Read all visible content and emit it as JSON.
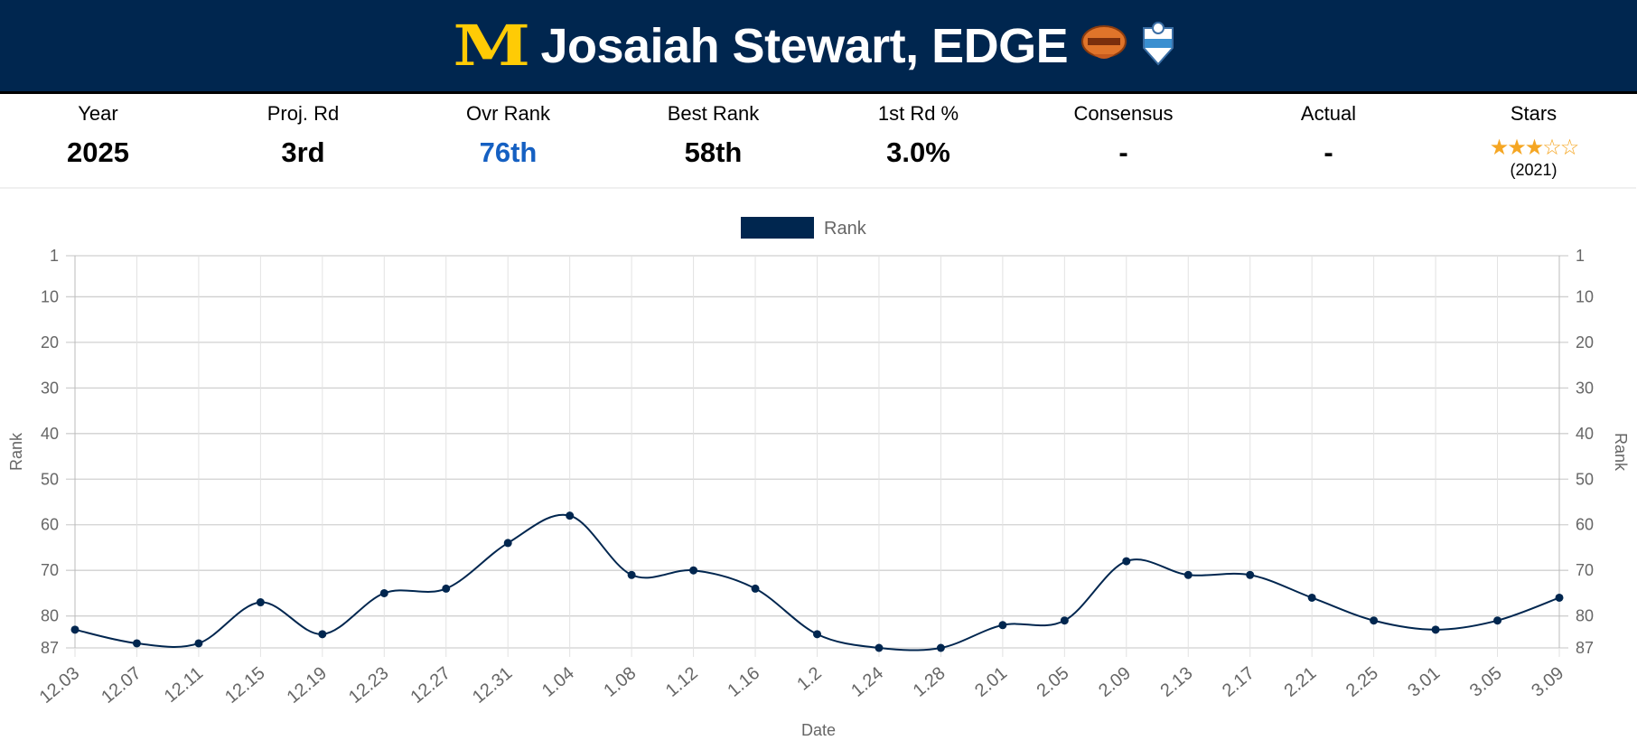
{
  "header": {
    "logo": "M",
    "title": "Josaiah Stewart, EDGE",
    "badges": [
      "senior-bowl-icon",
      "nfl-combine-icon"
    ]
  },
  "stats": [
    {
      "label": "Year",
      "value": "2025"
    },
    {
      "label": "Proj. Rd",
      "value": "3rd"
    },
    {
      "label": "Ovr Rank",
      "value": "76th"
    },
    {
      "label": "Best Rank",
      "value": "58th"
    },
    {
      "label": "1st Rd %",
      "value": "3.0%"
    },
    {
      "label": "Consensus",
      "value": "-"
    },
    {
      "label": "Actual",
      "value": "-"
    },
    {
      "label": "Stars",
      "value": "3",
      "sub": "(2021)"
    }
  ],
  "colors": {
    "navy": "#00264f",
    "maize": "#FFCB05",
    "accent": "#1560c2",
    "star": "#f5a623"
  },
  "chart_data": {
    "type": "line",
    "legend": "Rank",
    "legend_position": "top",
    "xlabel": "Date",
    "ylabel": "Rank",
    "ylim": [
      1,
      87
    ],
    "reversed_y": true,
    "y_ticks": [
      1,
      10,
      20,
      30,
      40,
      50,
      60,
      70,
      80,
      87
    ],
    "categories": [
      "12.03",
      "12.07",
      "12.11",
      "12.15",
      "12.19",
      "12.23",
      "12.27",
      "12.31",
      "1.04",
      "1.08",
      "1.12",
      "1.16",
      "1.2",
      "1.24",
      "1.28",
      "2.01",
      "2.05",
      "2.09",
      "2.13",
      "2.17",
      "2.21",
      "2.25",
      "3.01",
      "3.05",
      "3.09"
    ],
    "values": [
      83,
      86,
      86,
      77,
      84,
      75,
      74,
      64,
      58,
      71,
      70,
      74,
      84,
      87,
      87,
      82,
      81,
      68,
      71,
      71,
      76,
      81,
      83,
      81,
      76
    ],
    "grid": true
  }
}
